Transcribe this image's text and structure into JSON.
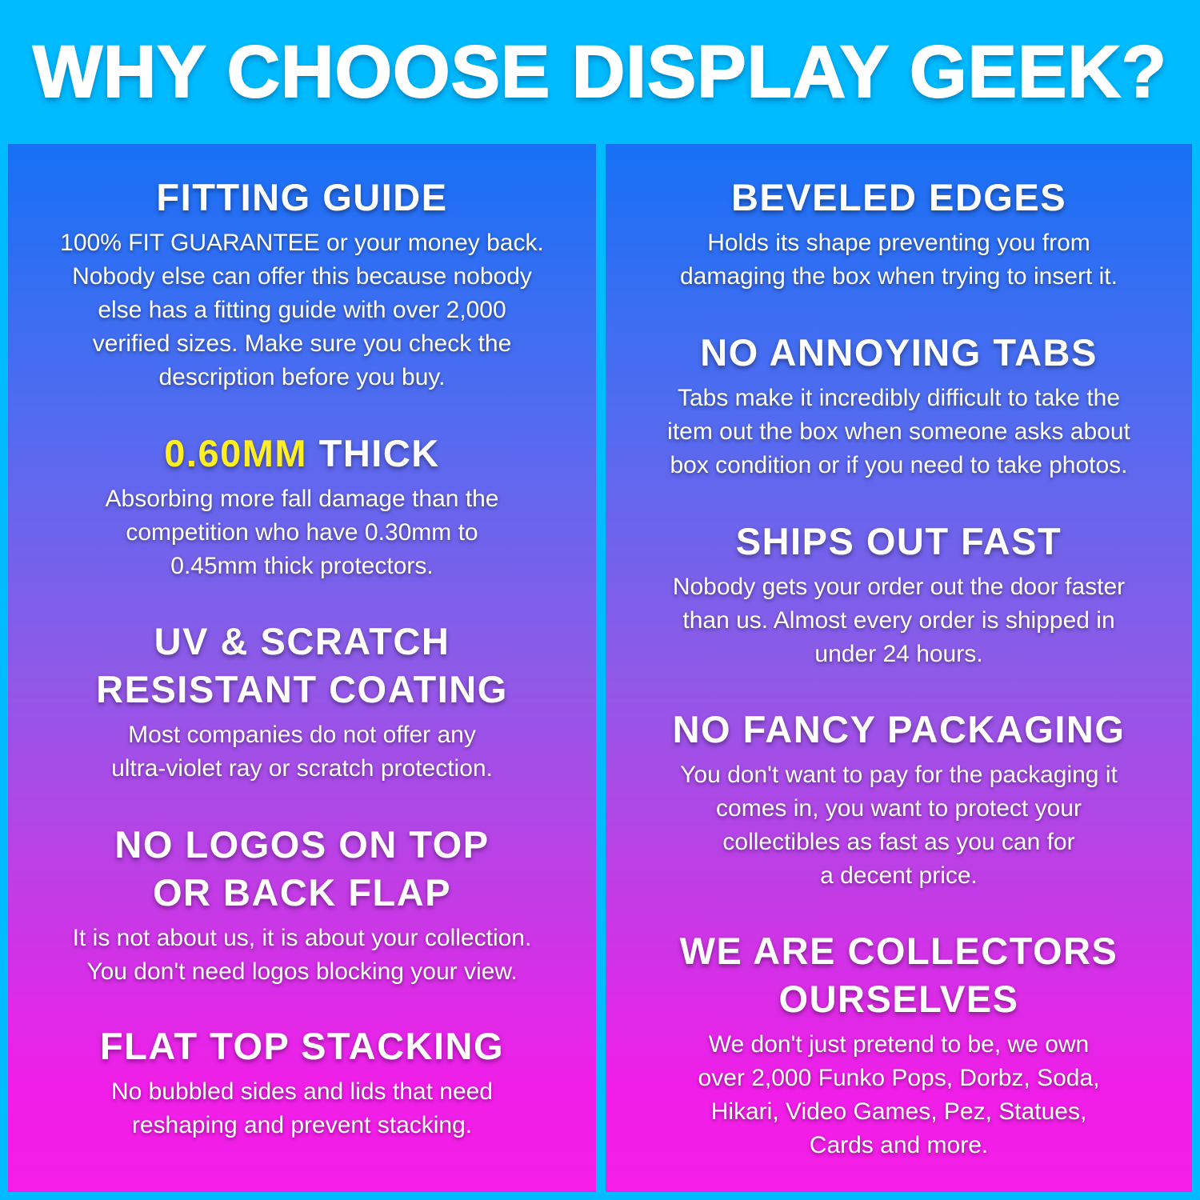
{
  "title": "WHY CHOOSE DISPLAY GEEK?",
  "colors": {
    "background": "#00bbff",
    "highlight": "#ffee22",
    "gradient_top": "#1770f5",
    "gradient_bottom": "#f41ee6"
  },
  "left": [
    {
      "heading": [
        "FITTING GUIDE"
      ],
      "body": [
        "100% FIT GUARANTEE or your money back.",
        "Nobody else can offer this because nobody",
        "else has a fitting guide with over 2,000",
        "verified sizes. Make sure you check the",
        "description before you buy."
      ]
    },
    {
      "heading_highlight": "0.60MM",
      "heading": [
        "THICK"
      ],
      "body": [
        "Absorbing more fall damage than the",
        "competition who have 0.30mm to",
        "0.45mm thick protectors."
      ]
    },
    {
      "heading": [
        "UV & SCRATCH",
        "RESISTANT COATING"
      ],
      "body": [
        "Most companies do not offer any",
        "ultra-violet ray or scratch protection."
      ]
    },
    {
      "heading": [
        "NO LOGOS ON TOP",
        "OR BACK FLAP"
      ],
      "body": [
        "It is not about us, it is about your collection.",
        "You don't need logos blocking your view."
      ]
    },
    {
      "heading": [
        "FLAT TOP STACKING"
      ],
      "body": [
        "No bubbled sides and lids that need",
        "reshaping and prevent stacking."
      ]
    }
  ],
  "right": [
    {
      "heading": [
        "BEVELED EDGES"
      ],
      "body": [
        "Holds its shape preventing you from",
        "damaging the box when trying to insert it."
      ]
    },
    {
      "heading": [
        "NO ANNOYING TABS"
      ],
      "body": [
        "Tabs make it incredibly difficult to take the",
        "item out the box when someone asks about",
        "box condition or if you need to take photos."
      ]
    },
    {
      "heading": [
        "SHIPS OUT FAST"
      ],
      "body": [
        "Nobody gets your order out the door faster",
        "than us. Almost every order is shipped in",
        "under 24 hours."
      ]
    },
    {
      "heading": [
        "NO FANCY PACKAGING"
      ],
      "body": [
        "You don't want to pay for the packaging it",
        "comes in, you want to protect your",
        "collectibles as fast as you can for",
        "a decent price."
      ]
    },
    {
      "heading": [
        "WE ARE COLLECTORS",
        "OURSELVES"
      ],
      "body": [
        "We don't just pretend to be, we own",
        "over 2,000 Funko Pops, Dorbz, Soda,",
        "Hikari, Video Games, Pez, Statues,",
        "Cards and more."
      ]
    }
  ]
}
